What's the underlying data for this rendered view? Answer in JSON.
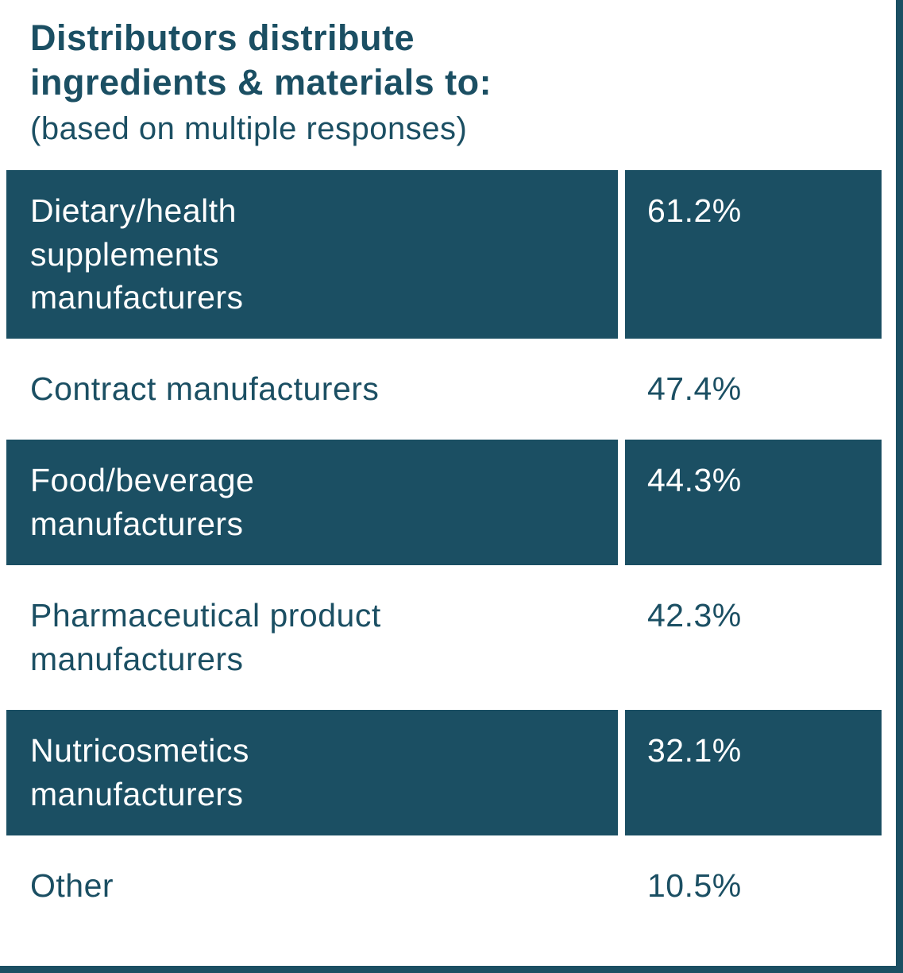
{
  "header": {
    "title": "Distributors distribute\ningredients & materials to:",
    "subtitle": "(based on multiple responses)"
  },
  "colors": {
    "accent_teal": "#1B4F63",
    "highlight_row_text": "#FFFFFF",
    "background": "#FFFFFF"
  },
  "chart_data": {
    "type": "table",
    "title": "Distributors distribute ingredients & materials to:",
    "subtitle": "(based on multiple responses)",
    "categories": [
      "Dietary/health supplements manufacturers",
      "Contract manufacturers",
      "Food/beverage manufacturers",
      "Pharmaceutical product manufacturers",
      "Nutricosmetics manufacturers",
      "Other"
    ],
    "values": [
      61.2,
      47.4,
      44.3,
      42.3,
      32.1,
      10.5
    ],
    "unit": "%",
    "rows": [
      {
        "label": "Dietary/health\nsupplements\nmanufacturers",
        "value": "61.2%",
        "highlighted": true
      },
      {
        "label": "Contract manufacturers",
        "value": "47.4%",
        "highlighted": false
      },
      {
        "label": "Food/beverage\nmanufacturers",
        "value": "44.3%",
        "highlighted": true
      },
      {
        "label": "Pharmaceutical product\nmanufacturers",
        "value": "42.3%",
        "highlighted": false
      },
      {
        "label": "Nutricosmetics\nmanufacturers",
        "value": "32.1%",
        "highlighted": true
      },
      {
        "label": "Other",
        "value": "10.5%",
        "highlighted": false
      }
    ]
  }
}
